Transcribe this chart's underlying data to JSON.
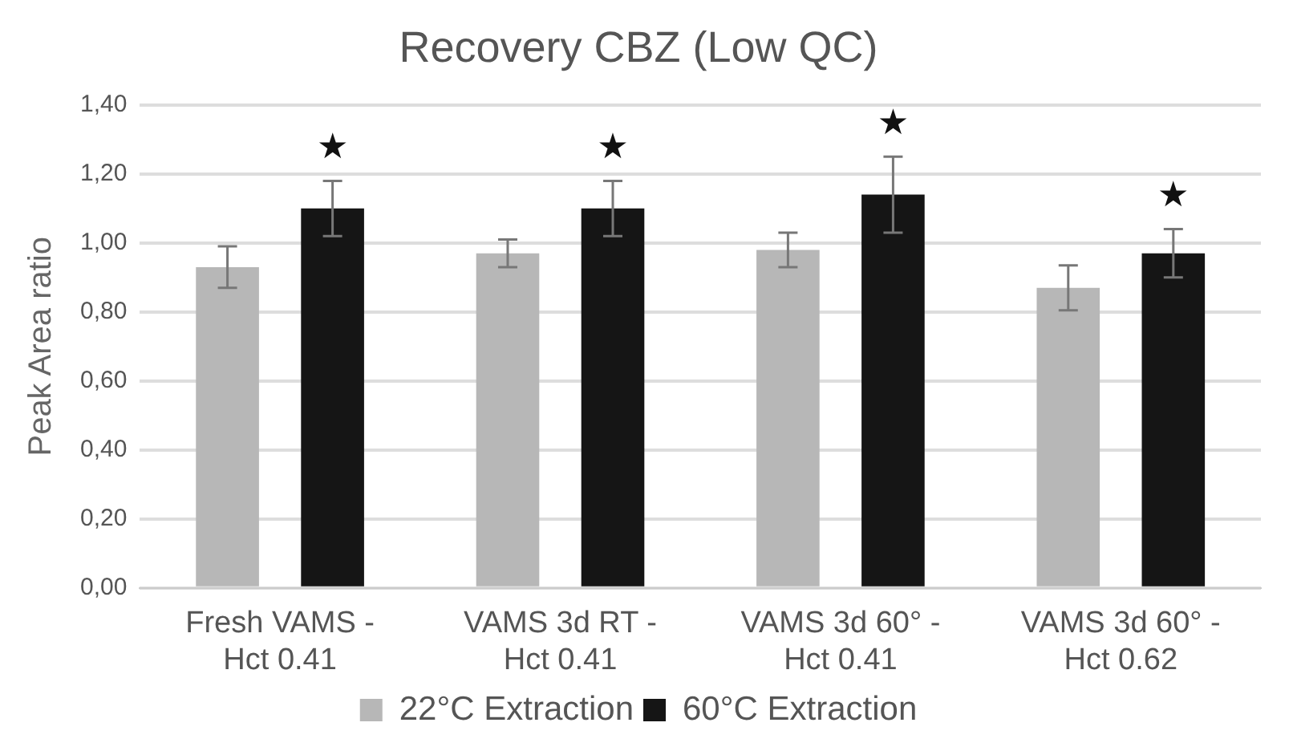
{
  "chart_data": {
    "type": "bar",
    "title": "Recovery CBZ (Low QC)",
    "ylabel": "Peak Area ratio",
    "categories": [
      "Fresh VAMS - Hct 0.41",
      "VAMS 3d RT - Hct 0.41",
      "VAMS 3d 60° - Hct 0.41",
      "VAMS 3d 60° - Hct 0.62"
    ],
    "series": [
      {
        "name": "22°C Extraction",
        "color": "#b7b7b7",
        "values": [
          0.93,
          0.97,
          0.98,
          0.87
        ],
        "errors": [
          0.06,
          0.04,
          0.05,
          0.065
        ]
      },
      {
        "name": "60°C Extraction",
        "color": "#151515",
        "values": [
          1.1,
          1.1,
          1.14,
          0.97
        ],
        "errors": [
          0.08,
          0.08,
          0.11,
          0.07
        ]
      }
    ],
    "ylim": [
      0,
      1.4
    ],
    "yticks": [
      {
        "value": 0,
        "label": "0,00"
      },
      {
        "value": 0.2,
        "label": "0,20"
      },
      {
        "value": 0.4,
        "label": "0,40"
      },
      {
        "value": 0.6,
        "label": "0,60"
      },
      {
        "value": 0.8,
        "label": "0,80"
      },
      {
        "value": 1.0,
        "label": "1,00"
      },
      {
        "value": 1.2,
        "label": "1,20"
      },
      {
        "value": 1.4,
        "label": "1,40"
      }
    ],
    "grid": "y",
    "legend": "bottom",
    "annotations": [
      "★",
      "★",
      "★",
      "★"
    ]
  }
}
